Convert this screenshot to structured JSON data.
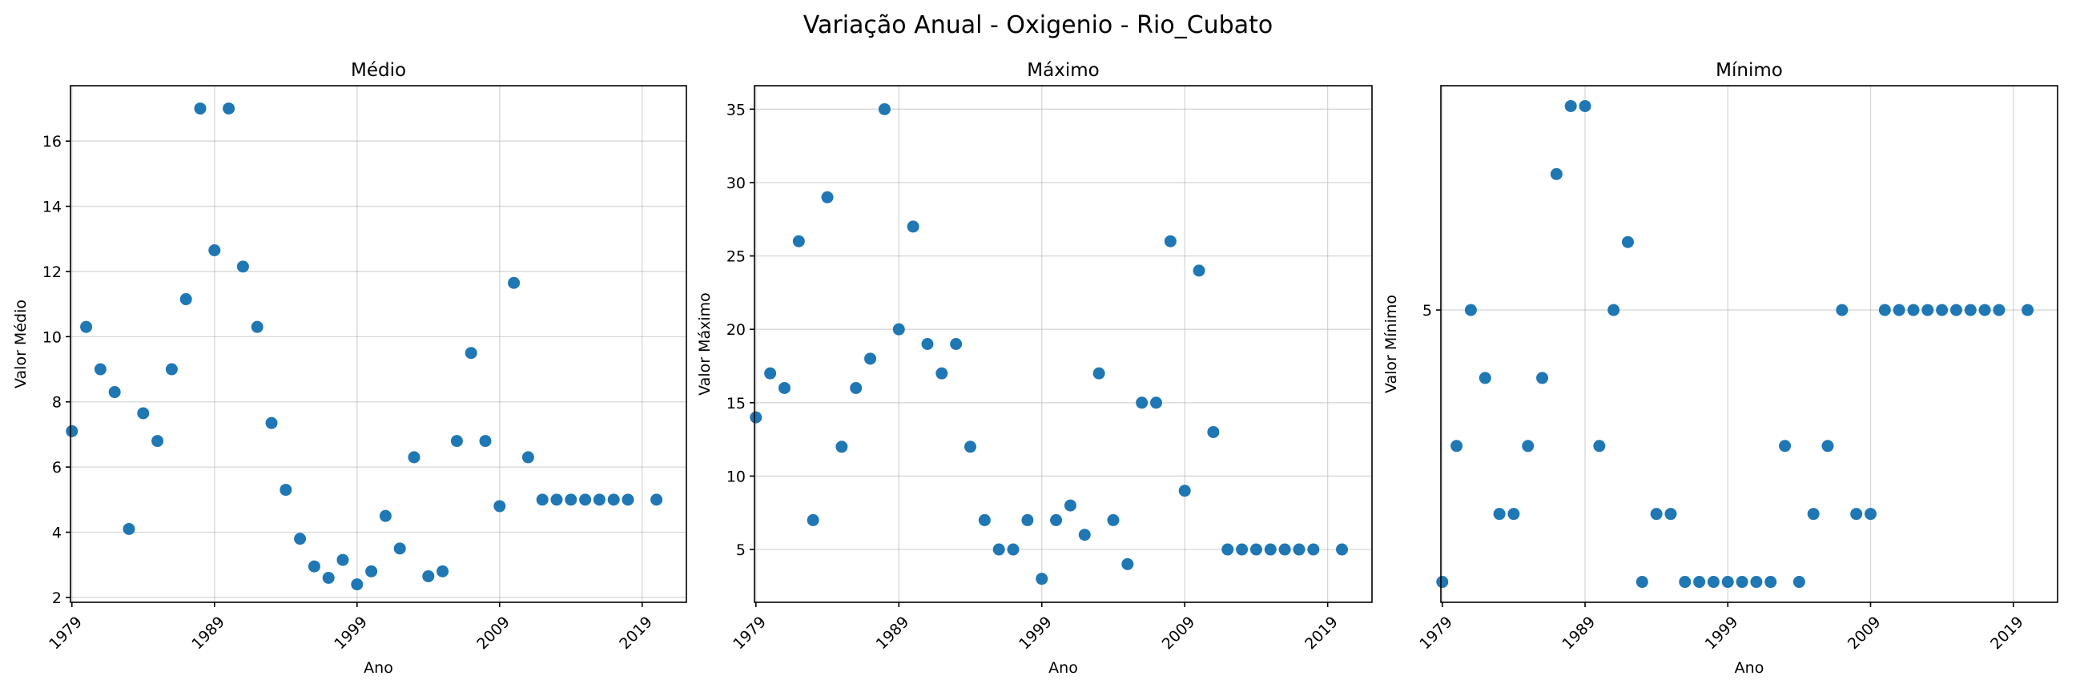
{
  "figure": {
    "suptitle": "Variação Anual - Oxigenio - Rio_Cubato"
  },
  "colors": {
    "marker": "#1f77b4",
    "grid": "#b0b0b0"
  },
  "chart_data": [
    {
      "type": "scatter",
      "title": "Médio",
      "xlabel": "Ano",
      "ylabel": "Valor Médio",
      "xlim": [
        1978.9,
        2022.1
      ],
      "ylim": [
        1.85,
        17.7
      ],
      "xticks": [
        1979,
        1989,
        1999,
        2009,
        2019
      ],
      "yticks": [
        2,
        4,
        6,
        8,
        10,
        12,
        14,
        16
      ],
      "grid": true,
      "x": [
        1979,
        1980,
        1981,
        1982,
        1983,
        1984,
        1985,
        1986,
        1987,
        1988,
        1989,
        1990,
        1991,
        1992,
        1993,
        1994,
        1995,
        1996,
        1997,
        1998,
        1999,
        2000,
        2001,
        2002,
        2003,
        2004,
        2005,
        2006,
        2007,
        2008,
        2009,
        2010,
        2011,
        2012,
        2013,
        2014,
        2015,
        2016,
        2017,
        2018,
        2020
      ],
      "y": [
        7.1,
        10.3,
        9.0,
        8.3,
        4.1,
        7.65,
        6.8,
        9.0,
        11.15,
        17.0,
        12.65,
        17.0,
        12.15,
        10.3,
        7.35,
        5.3,
        3.8,
        2.95,
        2.6,
        3.15,
        2.4,
        2.8,
        4.5,
        3.5,
        6.3,
        2.65,
        2.8,
        6.8,
        9.5,
        6.8,
        4.8,
        11.65,
        6.3,
        5.0,
        5.0,
        5.0,
        5.0,
        5.0,
        5.0,
        5.0,
        5.0
      ]
    },
    {
      "type": "scatter",
      "title": "Máximo",
      "xlabel": "Ano",
      "ylabel": "Valor Máximo",
      "xlim": [
        1978.9,
        2022.1
      ],
      "ylim": [
        1.4,
        36.6
      ],
      "xticks": [
        1979,
        1989,
        1999,
        2009,
        2019
      ],
      "yticks": [
        5,
        10,
        15,
        20,
        25,
        30,
        35
      ],
      "grid": true,
      "x": [
        1979,
        1980,
        1981,
        1982,
        1983,
        1984,
        1985,
        1986,
        1987,
        1988,
        1989,
        1990,
        1991,
        1992,
        1993,
        1994,
        1995,
        1996,
        1997,
        1998,
        1999,
        2000,
        2001,
        2002,
        2003,
        2004,
        2005,
        2006,
        2007,
        2008,
        2009,
        2010,
        2011,
        2012,
        2013,
        2014,
        2015,
        2016,
        2017,
        2018,
        2020
      ],
      "y": [
        14,
        17,
        16,
        26,
        7,
        29,
        12,
        16,
        18,
        35,
        20,
        27,
        19,
        17,
        19,
        12,
        7,
        5,
        5,
        7,
        3,
        7,
        8,
        6,
        17,
        7,
        4,
        15,
        15,
        26,
        9,
        24,
        13,
        5,
        5,
        5,
        5,
        5,
        5,
        5,
        5
      ]
    },
    {
      "type": "scatter",
      "title": "Mínimo",
      "xlabel": "Ano",
      "ylabel": "Valor Mínimo",
      "xlim": [
        1978.9,
        2022.1
      ],
      "ylim": [
        0.7,
        8.3
      ],
      "xticks": [
        1979,
        1989,
        1999,
        2009,
        2019
      ],
      "yticks": [
        5
      ],
      "grid": true,
      "x": [
        1979,
        1980,
        1981,
        1982,
        1983,
        1984,
        1985,
        1986,
        1987,
        1988,
        1989,
        1990,
        1991,
        1992,
        1993,
        1994,
        1995,
        1996,
        1997,
        1998,
        1999,
        2000,
        2001,
        2002,
        2003,
        2004,
        2005,
        2006,
        2007,
        2008,
        2009,
        2010,
        2011,
        2012,
        2013,
        2014,
        2015,
        2016,
        2017,
        2018,
        2020
      ],
      "y": [
        1.0,
        3.0,
        5.0,
        4.0,
        2.0,
        2.0,
        3.0,
        4.0,
        7.0,
        8.0,
        8.0,
        3.0,
        5.0,
        6.0,
        1.0,
        2.0,
        2.0,
        1.0,
        1.0,
        1.0,
        1.0,
        1.0,
        1.0,
        1.0,
        3.0,
        1.0,
        2.0,
        3.0,
        5.0,
        2.0,
        2.0,
        5.0,
        5.0,
        5.0,
        5.0,
        5.0,
        5.0,
        5.0,
        5.0,
        5.0,
        5.0
      ]
    }
  ]
}
